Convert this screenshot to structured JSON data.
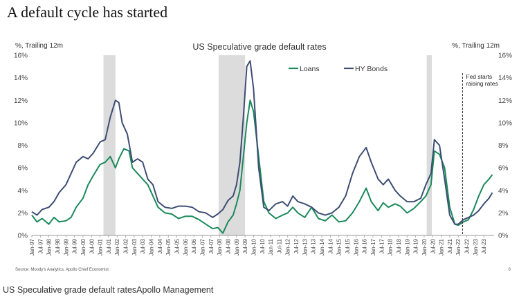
{
  "slide": {
    "headline": "A default cycle has started",
    "source": "Source: Moody's Analytics, Apollo Chief Economist",
    "page_number": "6",
    "caption": "US Speculative grade default ratesApollo Management"
  },
  "chart_data": {
    "type": "line",
    "title": "US Speculative grade default rates",
    "ylabel_left": "%, Trailing 12m",
    "ylabel_right": "%, Trailing 12m",
    "ylim": [
      0,
      16
    ],
    "yticks": [
      "0%",
      "2%",
      "4%",
      "6%",
      "8%",
      "10%",
      "12%",
      "14%",
      "16%"
    ],
    "xlim": [
      1997.0,
      2024.1
    ],
    "xticks": [
      "Jan-97",
      "Jul-97",
      "Jan-98",
      "Jul-98",
      "Jan-99",
      "Jul-99",
      "Jan-00",
      "Jul-00",
      "Jan-01",
      "Jul-01",
      "Jan-02",
      "Jul-02",
      "Jan-03",
      "Jul-03",
      "Jan-04",
      "Jul-04",
      "Jan-05",
      "Jul-05",
      "Jan-06",
      "Jul-06",
      "Jan-07",
      "Jul-07",
      "Jan-08",
      "Jul-08",
      "Jan-09",
      "Jul-09",
      "Jan-10",
      "Jul-10",
      "Jan-11",
      "Jul-11",
      "Jan-12",
      "Jul-12",
      "Jan-13",
      "Jul-13",
      "Jan-14",
      "Jul-14",
      "Jan-15",
      "Jul-15",
      "Jan-16",
      "Jul-16",
      "Jan-17",
      "Jul-17",
      "Jan-18",
      "Jul-18",
      "Jan-19",
      "Jul-19",
      "Jan-20",
      "Jul-20",
      "Jan-21",
      "Jul-21",
      "Jan-22",
      "Jul-22",
      "Jan-23",
      "Jul-23"
    ],
    "recessions": [
      [
        2001.2,
        2001.9
      ],
      [
        2007.95,
        2009.5
      ],
      [
        2020.15,
        2020.45
      ]
    ],
    "annotation": {
      "x": 2022.25,
      "lines": [
        "Fed starts",
        "raising rates"
      ]
    },
    "legend": [
      "Loans",
      "HY Bonds"
    ],
    "series": [
      {
        "name": "Loans",
        "color": "#1a8a5a",
        "x": [
          1997.0,
          1997.3,
          1997.6,
          1998.0,
          1998.3,
          1998.6,
          1999.0,
          1999.3,
          1999.6,
          2000.0,
          2000.3,
          2000.6,
          2001.0,
          2001.3,
          2001.6,
          2001.9,
          2002.1,
          2002.4,
          2002.7,
          2002.9,
          2003.2,
          2003.5,
          2003.8,
          2004.1,
          2004.4,
          2004.8,
          2005.2,
          2005.6,
          2006.0,
          2006.4,
          2006.8,
          2007.2,
          2007.6,
          2007.9,
          2008.2,
          2008.5,
          2008.8,
          2009.0,
          2009.2,
          2009.4,
          2009.6,
          2009.8,
          2010.0,
          2010.3,
          2010.6,
          2010.9,
          2011.3,
          2011.7,
          2012.0,
          2012.3,
          2012.6,
          2013.0,
          2013.4,
          2013.8,
          2014.2,
          2014.6,
          2015.0,
          2015.4,
          2015.8,
          2016.2,
          2016.6,
          2016.9,
          2017.3,
          2017.6,
          2017.9,
          2018.3,
          2018.6,
          2019.0,
          2019.4,
          2019.8,
          2020.1,
          2020.4,
          2020.6,
          2020.9,
          2021.2,
          2021.5,
          2021.8,
          2022.0,
          2022.3,
          2022.6,
          2022.9,
          2023.2,
          2023.5,
          2023.8,
          2024.0
        ],
        "values": [
          1.8,
          1.2,
          1.5,
          1.0,
          1.6,
          1.2,
          1.3,
          1.6,
          2.5,
          3.3,
          4.5,
          5.3,
          6.3,
          6.5,
          7.0,
          6.0,
          6.8,
          7.7,
          7.5,
          6.0,
          5.5,
          5.0,
          4.5,
          3.5,
          2.5,
          2.0,
          1.9,
          1.5,
          1.7,
          1.7,
          1.4,
          1.0,
          0.6,
          0.7,
          0.2,
          1.2,
          1.8,
          2.8,
          4.0,
          7.0,
          10.0,
          12.0,
          11.0,
          7.0,
          3.0,
          2.0,
          1.5,
          1.8,
          2.0,
          2.5,
          2.0,
          1.6,
          2.5,
          1.5,
          1.3,
          1.8,
          1.2,
          1.3,
          2.0,
          3.0,
          4.2,
          3.0,
          2.2,
          2.9,
          2.5,
          2.8,
          2.6,
          2.0,
          2.4,
          3.0,
          3.5,
          4.5,
          7.5,
          7.2,
          6.0,
          2.5,
          1.0,
          0.9,
          1.2,
          1.4,
          2.3,
          3.5,
          4.5,
          5.0,
          5.4
        ]
      },
      {
        "name": "HY Bonds",
        "color": "#3d4d73",
        "x": [
          1997.0,
          1997.3,
          1997.6,
          1998.0,
          1998.3,
          1998.6,
          1999.0,
          1999.3,
          1999.6,
          2000.0,
          2000.3,
          2000.6,
          2001.0,
          2001.3,
          2001.6,
          2001.9,
          2002.1,
          2002.3,
          2002.6,
          2002.9,
          2003.2,
          2003.5,
          2003.8,
          2004.1,
          2004.4,
          2004.8,
          2005.2,
          2005.6,
          2006.0,
          2006.4,
          2006.8,
          2007.2,
          2007.6,
          2007.9,
          2008.2,
          2008.5,
          2008.8,
          2009.0,
          2009.2,
          2009.4,
          2009.6,
          2009.8,
          2010.0,
          2010.3,
          2010.6,
          2010.9,
          2011.3,
          2011.7,
          2012.0,
          2012.3,
          2012.6,
          2013.0,
          2013.4,
          2013.8,
          2014.2,
          2014.6,
          2015.0,
          2015.4,
          2015.8,
          2016.2,
          2016.6,
          2016.9,
          2017.3,
          2017.6,
          2017.9,
          2018.3,
          2018.6,
          2019.0,
          2019.4,
          2019.8,
          2020.1,
          2020.4,
          2020.6,
          2020.9,
          2021.2,
          2021.5,
          2021.8,
          2022.0,
          2022.3,
          2022.6,
          2022.9,
          2023.2,
          2023.5,
          2023.8,
          2024.0
        ],
        "values": [
          2.1,
          1.8,
          2.3,
          2.5,
          3.0,
          3.8,
          4.5,
          5.5,
          6.5,
          7.0,
          6.8,
          7.3,
          8.3,
          8.5,
          10.5,
          12.0,
          11.8,
          10.0,
          9.0,
          6.5,
          6.8,
          6.5,
          5.0,
          4.5,
          3.0,
          2.5,
          2.4,
          2.6,
          2.6,
          2.5,
          2.1,
          2.0,
          1.6,
          1.9,
          2.3,
          3.1,
          3.5,
          4.5,
          6.5,
          10.5,
          15.0,
          15.5,
          13.0,
          6.0,
          2.5,
          2.2,
          2.8,
          3.0,
          2.6,
          3.5,
          3.0,
          2.8,
          2.5,
          2.0,
          1.8,
          2.0,
          2.5,
          3.5,
          5.5,
          7.0,
          7.8,
          6.5,
          5.0,
          4.5,
          5.0,
          4.0,
          3.5,
          3.0,
          3.0,
          3.3,
          4.5,
          5.5,
          8.5,
          8.0,
          5.0,
          1.8,
          1.0,
          1.0,
          1.4,
          1.6,
          1.8,
          2.2,
          2.8,
          3.3,
          3.8
        ]
      }
    ]
  }
}
